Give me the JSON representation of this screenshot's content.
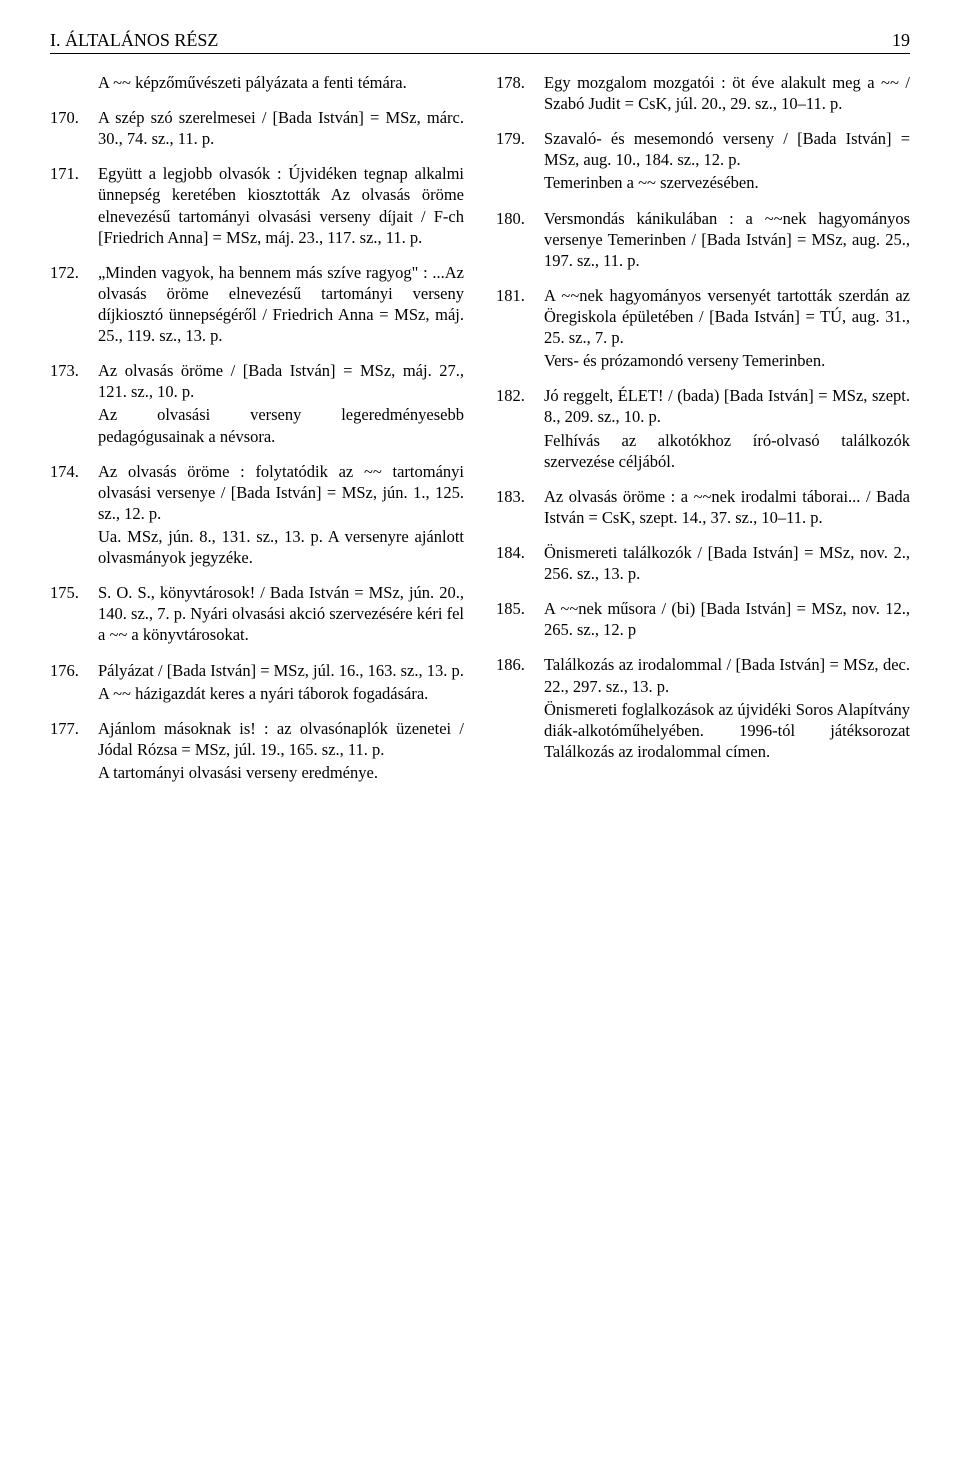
{
  "header": {
    "title": "I. ÁLTALÁNOS RÉSZ",
    "page": "19"
  },
  "left": {
    "intro": "A ~~ képzőművészeti pályázata a fenti témára.",
    "entries": [
      {
        "n": "170.",
        "t": "A szép szó szerelmesei / [Bada István] = MSz, márc. 30., 74. sz., 11. p."
      },
      {
        "n": "171.",
        "t": "Együtt a legjobb olvasók : Újvidéken tegnap alkalmi ünnepség keretében kiosztották Az olvasás öröme elnevezésű tartományi olvasási verseny díjait / F-ch [Friedrich Anna] = MSz, máj. 23., 117. sz., 11. p."
      },
      {
        "n": "172.",
        "t": "„Minden vagyok, ha bennem más szíve ragyog\" : ...Az olvasás öröme elnevezésű tartományi verseny díjkiosztó ünnepségéről / Friedrich Anna = MSz, máj. 25., 119. sz., 13. p."
      },
      {
        "n": "173.",
        "t": "Az olvasás öröme / [Bada István] = MSz, máj. 27., 121. sz., 10. p.",
        "s": "Az olvasási verseny legeredményesebb pedagógusainak a névsora."
      },
      {
        "n": "174.",
        "t": "Az olvasás öröme : folytatódik az ~~ tartományi olvasási versenye / [Bada István] = MSz, jún. 1., 125. sz., 12. p.",
        "s": "Ua. MSz, jún. 8., 131. sz., 13. p. A versenyre ajánlott olvasmányok jegyzéke."
      },
      {
        "n": "175.",
        "t": "S. O. S., könyvtárosok! / Bada István = MSz, jún. 20., 140. sz., 7. p. Nyári olvasási akció szervezésére kéri fel a ~~ a könyvtárosokat."
      },
      {
        "n": "176.",
        "t": "Pályázat / [Bada István] = MSz, júl. 16., 163. sz., 13. p.",
        "s": "A ~~ házigazdát keres a nyári táborok fogadására."
      },
      {
        "n": "177.",
        "t": "Ajánlom másoknak is! : az olvasónaplók üzenetei / Jódal Rózsa = MSz, júl. 19., 165. sz., 11. p.",
        "s": "A tartományi olvasási verseny eredménye."
      }
    ]
  },
  "right": {
    "entries": [
      {
        "n": "178.",
        "t": "Egy mozgalom mozgatói : öt éve alakult meg a ~~ / Szabó Judit = CsK, júl. 20., 29. sz., 10–11. p."
      },
      {
        "n": "179.",
        "t": "Szavaló- és mesemondó verseny / [Bada István] = MSz, aug. 10., 184. sz., 12. p.",
        "s": "Temerinben a ~~ szervezésében."
      },
      {
        "n": "180.",
        "t": "Versmondás kánikulában : a ~~nek hagyományos versenye Temerinben / [Bada István] = MSz, aug. 25., 197. sz., 11. p."
      },
      {
        "n": "181.",
        "t": "A ~~nek hagyományos versenyét tartották szerdán az Öregiskola épületében / [Bada István] = TÚ, aug. 31., 25. sz., 7. p.",
        "s": "Vers- és prózamondó verseny Temerinben."
      },
      {
        "n": "182.",
        "t": "Jó reggelt, ÉLET! / (bada) [Bada István] = MSz, szept. 8., 209. sz., 10. p.",
        "s": "Felhívás az alkotókhoz író-olvasó találkozók szervezése céljából."
      },
      {
        "n": "183.",
        "t": "Az olvasás öröme : a ~~nek irodalmi táborai... / Bada István = CsK, szept. 14., 37. sz., 10–11. p."
      },
      {
        "n": "184.",
        "t": "Önismereti találkozók / [Bada István] = MSz, nov. 2., 256. sz., 13. p."
      },
      {
        "n": "185.",
        "t": "A ~~nek műsora / (bi) [Bada István] = MSz, nov. 12., 265. sz., 12. p"
      },
      {
        "n": "186.",
        "t": "Találkozás az irodalommal / [Bada István] = MSz, dec. 22., 297. sz., 13. p.",
        "s": "Önismereti foglalkozások az újvidéki Soros Alapítvány diák-alkotóműhelyében. 1996-tól játéksorozat Találkozás az irodalommal címen."
      }
    ]
  }
}
